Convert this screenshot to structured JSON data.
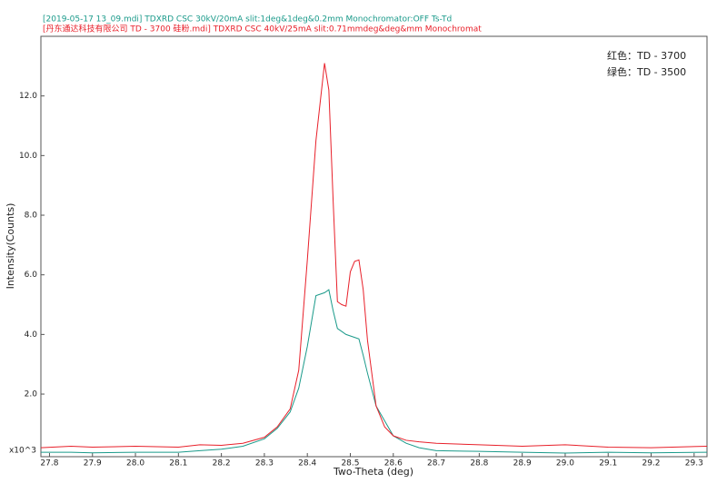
{
  "chart_data": {
    "type": "line",
    "x_label": "Two-Theta (deg)",
    "y_label": "Intensity(Counts)",
    "y_multiplier": "x10^3",
    "annotations": [
      "红色：TD - 3700",
      "绿色：TD - 3500"
    ],
    "x": [
      27.78,
      27.85,
      27.9,
      28.0,
      28.1,
      28.15,
      28.2,
      28.25,
      28.3,
      28.33,
      28.36,
      28.38,
      28.4,
      28.42,
      28.44,
      28.45,
      28.46,
      28.47,
      28.48,
      28.49,
      28.5,
      28.51,
      28.52,
      28.53,
      28.54,
      28.56,
      28.58,
      28.6,
      28.63,
      28.66,
      28.7,
      28.8,
      28.9,
      29.0,
      29.1,
      29.2,
      29.33
    ],
    "series": [
      {
        "name": "[2019-05-17 13_09.mdi] TDXRD CSC 30kV/20mA slit:1deg&1deg&0.2mm Monochromator:OFF Ts-Td",
        "color": "#1a9a8a",
        "values": [
          0.05,
          0.05,
          0.03,
          0.05,
          0.05,
          0.1,
          0.15,
          0.25,
          0.5,
          0.85,
          1.4,
          2.2,
          3.6,
          5.3,
          5.4,
          5.5,
          4.8,
          4.2,
          4.1,
          4.0,
          3.95,
          3.9,
          3.85,
          3.3,
          2.7,
          1.6,
          1.1,
          0.6,
          0.35,
          0.2,
          0.1,
          0.08,
          0.05,
          0.02,
          0.05,
          0.03,
          0.05
        ]
      },
      {
        "name": "[丹东通达科技有限公司 TD - 3700 硅粉.mdi] TDXRD CSC 40kV/25mA slit:0.71mmdeg&deg&mm Monochromat",
        "color": "#e8202a",
        "values": [
          0.2,
          0.25,
          0.22,
          0.25,
          0.22,
          0.3,
          0.28,
          0.35,
          0.55,
          0.9,
          1.5,
          2.8,
          6.5,
          10.5,
          13.1,
          12.2,
          8.5,
          5.1,
          5.0,
          4.95,
          6.1,
          6.45,
          6.5,
          5.5,
          3.8,
          1.6,
          0.9,
          0.6,
          0.45,
          0.4,
          0.35,
          0.3,
          0.25,
          0.3,
          0.22,
          0.2,
          0.25
        ]
      }
    ],
    "xlim": [
      27.78,
      29.33
    ],
    "xticks": [
      27.8,
      27.9,
      {
        "value": 28.0,
        "label": "28.0"
      },
      28.1,
      28.2,
      28.3,
      28.4,
      28.5,
      28.6,
      28.7,
      28.8,
      28.9,
      {
        "value": 29.0,
        "label": "29.0"
      },
      29.1,
      29.2,
      29.3
    ],
    "ylim": [
      -0.1,
      14
    ],
    "yticks": [
      {
        "value": 2,
        "label": "2.0"
      },
      {
        "value": 4,
        "label": "4.0"
      },
      {
        "value": 6,
        "label": "6.0"
      },
      {
        "value": 8,
        "label": "8.0"
      },
      {
        "value": 10,
        "label": "10.0"
      },
      {
        "value": 12,
        "label": "12.0"
      }
    ],
    "grid": false
  }
}
